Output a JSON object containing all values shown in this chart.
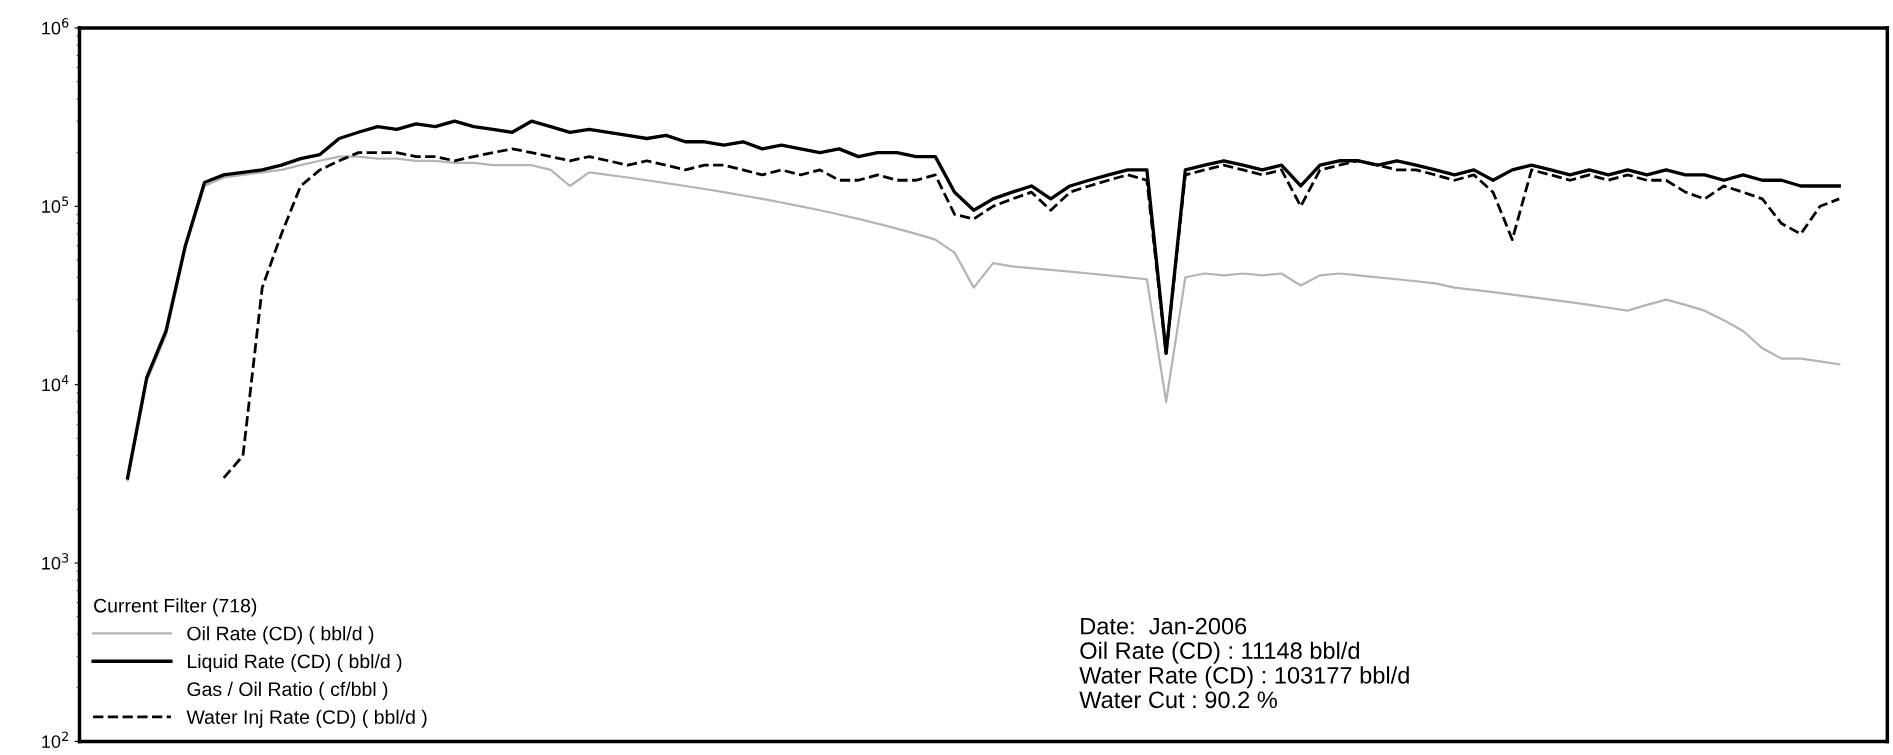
{
  "chart_data": {
    "type": "line",
    "log": "y",
    "grid": false,
    "legend": "bottom left",
    "tick_labels": "y",
    "legend_title": "Current Filter (718)",
    "categories": [
      null,
      null,
      null,
      null,
      null,
      null,
      null,
      null,
      null,
      null,
      null,
      null,
      null,
      null,
      null,
      null,
      null,
      null,
      null,
      null,
      null,
      null,
      null,
      null,
      null,
      null,
      null,
      null,
      null,
      null,
      null,
      null,
      null,
      null,
      null,
      null,
      null,
      null,
      null,
      null,
      null,
      null,
      null,
      null,
      null,
      null,
      null,
      null,
      null,
      null,
      null,
      null,
      null,
      null,
      null,
      null,
      null,
      null,
      null,
      null,
      null,
      null,
      null,
      null,
      null,
      null,
      null,
      null,
      null,
      null,
      null,
      null,
      null,
      null,
      null,
      null,
      null,
      null,
      null,
      null,
      null,
      null,
      null,
      null,
      null,
      null,
      null,
      null,
      null,
      null,
      null,
      null,
      null,
      null
    ],
    "ylim": [
      100,
      1000000
    ],
    "yticks": [
      {
        "value": 100,
        "label": "10$^{2}$"
      },
      {
        "value": 1000,
        "label": "10$^{3}$"
      },
      {
        "value": 10000,
        "label": "10$^{4}$"
      },
      {
        "value": 100000,
        "label": "10$^{5}$"
      },
      {
        "value": 1000000,
        "label": "10$^{6}$"
      }
    ],
    "series": [
      {
        "name": "Oil Rate (CD) ( bbl/d )",
        "color": "#b4b4b4",
        "line_style": "solid",
        "values": [
          null,
          null,
          2900,
          10500,
          19000,
          58000,
          130000,
          145000,
          150000,
          155000,
          160000,
          170000,
          180000,
          190000,
          190000,
          185000,
          185000,
          180000,
          180000,
          175000,
          175000,
          170000,
          170000,
          170000,
          160000,
          130000,
          155000,
          150000,
          145000,
          140000,
          135000,
          130000,
          125000,
          120000,
          115000,
          110000,
          105000,
          100000,
          95000,
          90000,
          85000,
          80000,
          75000,
          70000,
          65000,
          55000,
          35000,
          48000,
          46000,
          45000,
          44000,
          43000,
          42000,
          41000,
          40000,
          39000,
          8000,
          40000,
          42000,
          41000,
          42000,
          41000,
          42000,
          36000,
          41000,
          42000,
          41000,
          40000,
          39000,
          38000,
          37000,
          35000,
          34000,
          33000,
          32000,
          31000,
          30000,
          29000,
          28000,
          27000,
          26000,
          28000,
          30000,
          28000,
          26000,
          23000,
          20000,
          16000,
          14000,
          14000,
          13500,
          13000,
          null,
          null
        ]
      },
      {
        "name": "Liquid Rate (CD) ( bbl/d )",
        "color": "#000000",
        "line_style": "solid",
        "values": [
          null,
          null,
          3000,
          11000,
          20000,
          60000,
          136000,
          150000,
          155000,
          160000,
          170000,
          185000,
          195000,
          240000,
          260000,
          280000,
          270000,
          290000,
          280000,
          300000,
          280000,
          270000,
          260000,
          300000,
          280000,
          260000,
          270000,
          260000,
          250000,
          240000,
          250000,
          230000,
          230000,
          220000,
          230000,
          210000,
          220000,
          210000,
          200000,
          210000,
          190000,
          200000,
          200000,
          190000,
          190000,
          120000,
          95000,
          110000,
          120000,
          130000,
          110000,
          130000,
          140000,
          150000,
          160000,
          160000,
          15000,
          160000,
          170000,
          180000,
          170000,
          160000,
          170000,
          130000,
          170000,
          180000,
          180000,
          170000,
          180000,
          170000,
          160000,
          150000,
          160000,
          140000,
          160000,
          170000,
          160000,
          150000,
          160000,
          150000,
          160000,
          150000,
          160000,
          150000,
          150000,
          140000,
          150000,
          140000,
          140000,
          130000,
          130000,
          130000,
          null,
          null
        ]
      },
      {
        "name": "Gas / Oil Ratio ( cf/bbl )",
        "values": [
          null,
          null,
          null,
          null,
          null,
          null,
          null,
          null,
          null,
          null,
          null,
          null,
          null,
          null,
          null,
          null,
          null,
          null,
          null,
          null,
          null,
          null,
          null,
          null,
          null,
          null,
          null,
          null,
          null,
          null,
          null,
          null,
          null,
          null,
          null,
          null,
          null,
          null,
          null,
          null,
          null,
          null,
          null,
          null,
          null,
          null,
          null,
          null,
          null,
          null,
          null,
          null,
          null,
          null,
          null,
          null,
          null,
          null,
          null,
          null,
          null,
          null,
          null,
          null,
          null,
          null,
          null,
          null,
          null,
          null,
          null,
          null,
          null,
          null,
          null,
          null,
          null,
          null,
          null,
          null,
          null,
          null,
          null,
          null,
          null,
          null,
          null,
          null,
          null,
          null,
          null,
          null,
          null,
          null
        ]
      },
      {
        "name": "Water Inj Rate (CD) ( bbl/d )",
        "color": "#000000",
        "line_style": "dashed",
        "values": [
          null,
          null,
          null,
          null,
          null,
          null,
          null,
          3000,
          4000,
          35000,
          70000,
          130000,
          160000,
          180000,
          200000,
          200000,
          200000,
          190000,
          190000,
          180000,
          190000,
          200000,
          210000,
          200000,
          190000,
          180000,
          190000,
          180000,
          170000,
          180000,
          170000,
          160000,
          170000,
          170000,
          160000,
          150000,
          160000,
          150000,
          160000,
          140000,
          140000,
          150000,
          140000,
          140000,
          150000,
          90000,
          85000,
          100000,
          110000,
          120000,
          95000,
          120000,
          130000,
          140000,
          150000,
          140000,
          15000,
          150000,
          160000,
          170000,
          160000,
          150000,
          160000,
          100000,
          160000,
          170000,
          180000,
          170000,
          160000,
          160000,
          150000,
          140000,
          150000,
          120000,
          65000,
          160000,
          150000,
          140000,
          150000,
          140000,
          150000,
          140000,
          140000,
          120000,
          110000,
          130000,
          120000,
          110000,
          80000,
          70000,
          100000,
          110000,
          null,
          null
        ]
      }
    ],
    "annotations": [
      "Date:  Jan-2006\nOil Rate (CD) : 11148 bbl/d\nWater Rate (CD) : 103177 bbl/d\nWater Cut : 90.2 %"
    ]
  }
}
